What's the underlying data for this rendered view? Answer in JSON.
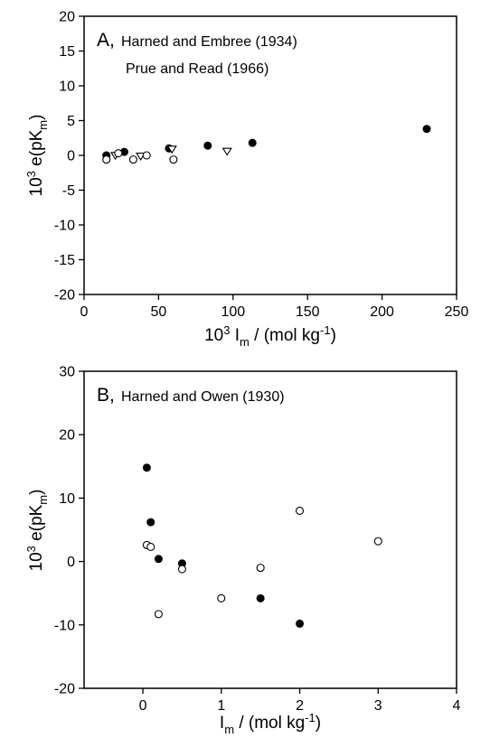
{
  "chart_data": [
    {
      "type": "scatter",
      "panel_label": "A,",
      "ylabel_parts": [
        "10",
        "3",
        " e(pK",
        "m",
        ")"
      ],
      "xlabel_parts": [
        "10",
        "3",
        " I",
        "m",
        " / (mol kg",
        "-1",
        ")"
      ],
      "xlim": [
        0,
        250
      ],
      "ylim": [
        -20,
        20
      ],
      "xticks": [
        0,
        50,
        100,
        150,
        200,
        250
      ],
      "yticks": [
        -20,
        -15,
        -10,
        -5,
        0,
        5,
        10,
        15,
        20
      ],
      "xtick_labels": [
        "0",
        "50",
        "100",
        "150",
        "200",
        "250"
      ],
      "ytick_labels": [
        "-20",
        "-15",
        "-10",
        "-5",
        "0",
        "5",
        "10",
        "15",
        "20"
      ],
      "grid": false,
      "legend_position": "top-left",
      "series": [
        {
          "name": "Harned and Embree (1934)",
          "marker": "filled-circle",
          "x": [
            15,
            27,
            57,
            83,
            113,
            230
          ],
          "y": [
            0.0,
            0.5,
            1.0,
            1.4,
            1.8,
            3.8
          ]
        },
        {
          "name": "Prue and Read (1966)",
          "marker": "open-triangle-down",
          "x": [
            21,
            38,
            59,
            96
          ],
          "y": [
            0.0,
            -0.1,
            0.9,
            0.6
          ]
        },
        {
          "name": "",
          "marker": "open-circle",
          "x": [
            15,
            23,
            33,
            42,
            60
          ],
          "y": [
            -0.6,
            0.3,
            -0.6,
            0.0,
            -0.6
          ]
        }
      ]
    },
    {
      "type": "scatter",
      "panel_label": "B,",
      "ylabel_parts": [
        "10",
        "3",
        " e(pK",
        "m",
        ")"
      ],
      "xlabel_parts": [
        "I",
        "m",
        " / (mol kg",
        "-1",
        ")"
      ],
      "xlim": [
        -0.75,
        4
      ],
      "ylim": [
        -20,
        30
      ],
      "xticks": [
        0,
        1,
        2,
        3,
        4
      ],
      "yticks": [
        -20,
        -10,
        0,
        10,
        20,
        30
      ],
      "xtick_labels": [
        "0",
        "1",
        "2",
        "3",
        "4"
      ],
      "ytick_labels": [
        "-20",
        "-10",
        "0",
        "10",
        "20",
        "30"
      ],
      "grid": false,
      "legend_position": "top-left",
      "series": [
        {
          "name": "Harned and Owen (1930)",
          "marker": "filled-circle",
          "x": [
            0.05,
            0.1,
            0.2,
            0.5,
            1.5,
            2.0
          ],
          "y": [
            14.8,
            6.2,
            0.4,
            -0.3,
            -5.8,
            -9.8
          ]
        },
        {
          "name": "",
          "marker": "open-circle",
          "x": [
            0.05,
            0.1,
            0.2,
            0.5,
            1.0,
            1.5,
            2.0,
            3.0
          ],
          "y": [
            2.6,
            2.3,
            -8.3,
            -1.2,
            -5.8,
            -1.0,
            8.0,
            3.2
          ]
        }
      ]
    }
  ]
}
